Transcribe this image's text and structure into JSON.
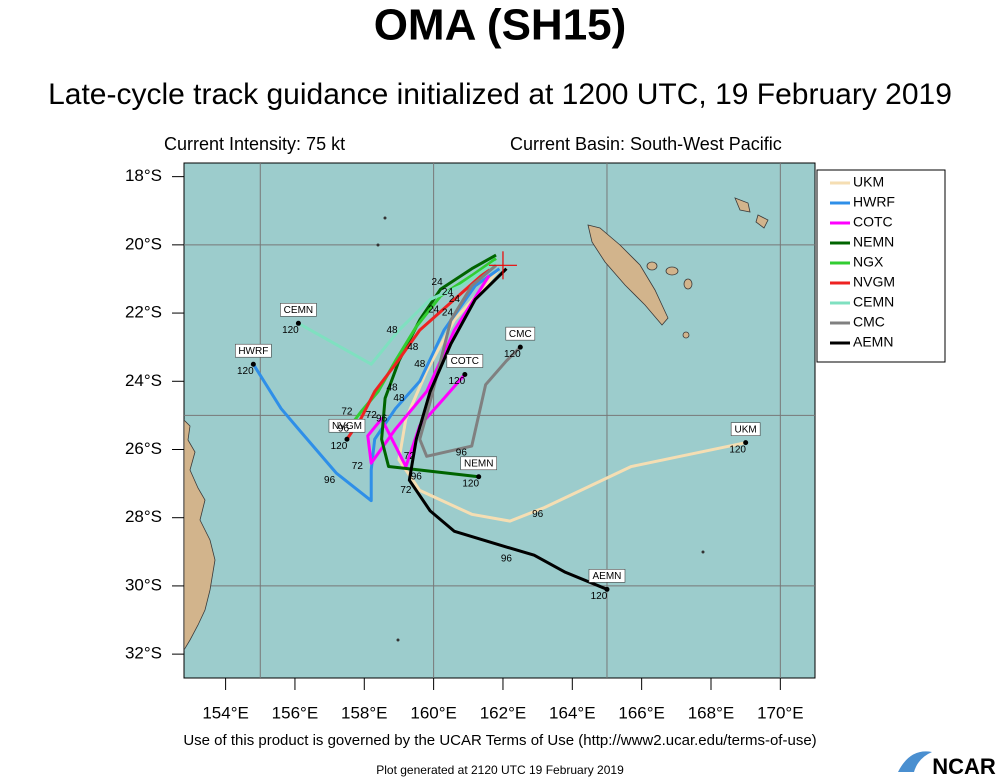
{
  "title": "OMA (SH15)",
  "subtitle": "Late-cycle track guidance initialized at 1200 UTC, 19 February 2019",
  "intensity": "Current Intensity: 75 kt",
  "basin": "Current Basin: South-West Pacific",
  "map": {
    "xlim": [
      152.8,
      171.0
    ],
    "ylim": [
      -32.7,
      -17.6
    ],
    "xticks": [
      {
        "value": 154,
        "label": "154°E"
      },
      {
        "value": 156,
        "label": "156°E"
      },
      {
        "value": 158,
        "label": "158°E"
      },
      {
        "value": 160,
        "label": "160°E"
      },
      {
        "value": 162,
        "label": "162°E"
      },
      {
        "value": 164,
        "label": "164°E"
      },
      {
        "value": 166,
        "label": "166°E"
      },
      {
        "value": 168,
        "label": "168°E"
      },
      {
        "value": 170,
        "label": "170°E"
      }
    ],
    "yticks": [
      {
        "value": -18,
        "label": "18°S"
      },
      {
        "value": -20,
        "label": "20°S"
      },
      {
        "value": -22,
        "label": "22°S"
      },
      {
        "value": -24,
        "label": "24°S"
      },
      {
        "value": -26,
        "label": "26°S"
      },
      {
        "value": -28,
        "label": "28°S"
      },
      {
        "value": -30,
        "label": "30°S"
      },
      {
        "value": -32,
        "label": "32°S"
      }
    ],
    "grid_lon": [
      155,
      160,
      165,
      170
    ],
    "grid_lat": [
      -20,
      -25,
      -30
    ],
    "current_position": {
      "lon": 162.0,
      "lat": -20.6
    }
  },
  "tracks": [
    {
      "name": "UKM",
      "color": "#f5deb3",
      "end_label": "120",
      "lon": [
        161.9,
        161.4,
        160.6,
        159.8,
        159.2,
        159.0,
        159.6,
        161.1,
        162.2,
        163.2,
        165.7,
        169.0
      ],
      "lat": [
        -20.7,
        -21.3,
        -22.2,
        -23.7,
        -25.1,
        -26.3,
        -27.2,
        -27.9,
        -28.1,
        -27.7,
        -26.5,
        -25.8
      ]
    },
    {
      "name": "HWRF",
      "color": "#2f8fe8",
      "end_label": "120",
      "lon": [
        161.9,
        161.2,
        160.3,
        159.6,
        158.9,
        158.3,
        158.2,
        158.2,
        157.2,
        156.1,
        155.6,
        154.8
      ],
      "lat": [
        -20.7,
        -21.2,
        -22.5,
        -24.0,
        -24.8,
        -25.7,
        -26.6,
        -27.5,
        -26.7,
        -25.4,
        -24.8,
        -23.5
      ]
    },
    {
      "name": "COTC",
      "color": "#ff00ff",
      "end_label": "120",
      "lon": [
        161.6,
        160.6,
        159.8,
        158.9,
        158.2,
        158.1,
        158.5,
        159.2,
        159.6,
        160.3,
        160.9
      ],
      "lat": [
        -20.9,
        -22.5,
        -24.3,
        -25.4,
        -26.4,
        -25.6,
        -25.1,
        -26.5,
        -25.3,
        -24.5,
        -23.8
      ]
    },
    {
      "name": "NEMN",
      "color": "#006400",
      "end_label": "120",
      "lon": [
        161.8,
        161.1,
        160.2,
        159.6,
        159.0,
        158.6,
        158.5,
        158.7,
        159.6,
        161.3
      ],
      "lat": [
        -20.3,
        -20.7,
        -21.3,
        -22.2,
        -23.4,
        -24.5,
        -25.7,
        -26.5,
        -26.6,
        -26.8
      ]
    },
    {
      "name": "NGX",
      "color": "#32cd32",
      "lon": [
        161.8,
        161.1,
        160.2,
        159.5,
        158.9,
        158.4,
        157.9,
        157.6
      ],
      "lat": [
        -20.4,
        -20.9,
        -21.5,
        -22.4,
        -23.4,
        -24.3,
        -24.9,
        -25.3
      ]
    },
    {
      "name": "NVGM",
      "color": "#ee2222",
      "end_label": "120",
      "lon": [
        161.6,
        160.6,
        159.6,
        158.9,
        158.3,
        157.9,
        157.5
      ],
      "lat": [
        -20.7,
        -21.6,
        -22.5,
        -23.5,
        -24.3,
        -25.1,
        -25.7
      ]
    },
    {
      "name": "CEMN",
      "color": "#7fe0c0",
      "end_label": "120",
      "lon": [
        161.8,
        160.8,
        159.9,
        159.0,
        158.2,
        156.1
      ],
      "lat": [
        -20.5,
        -21.2,
        -21.6,
        -22.5,
        -23.5,
        -22.3
      ]
    },
    {
      "name": "CMC",
      "color": "#808080",
      "end_label": "120",
      "lon": [
        161.8,
        161.1,
        160.5,
        160.2,
        159.9,
        159.6,
        159.8,
        161.1,
        161.5,
        162.1,
        162.5
      ],
      "lat": [
        -20.6,
        -21.2,
        -22.2,
        -23.4,
        -24.6,
        -25.7,
        -26.2,
        -25.9,
        -24.1,
        -23.4,
        -23.0
      ]
    },
    {
      "name": "AEMN",
      "color": "#000000",
      "end_label": "120",
      "lon": [
        162.1,
        161.2,
        160.5,
        159.9,
        159.5,
        159.3,
        159.9,
        160.6,
        161.9,
        162.9,
        163.8,
        165.0
      ],
      "lat": [
        -20.7,
        -21.6,
        -22.9,
        -24.3,
        -25.7,
        -26.9,
        -27.8,
        -28.4,
        -28.8,
        -29.1,
        -29.6,
        -30.1
      ]
    }
  ],
  "hour_labels": [
    {
      "label": "96",
      "lon": 163.0,
      "lat": -27.9
    },
    {
      "label": "96",
      "lon": 157.0,
      "lat": -26.9
    },
    {
      "label": "96",
      "lon": 162.1,
      "lat": -29.2
    },
    {
      "label": "96",
      "lon": 160.8,
      "lat": -26.1
    },
    {
      "label": "72",
      "lon": 159.3,
      "lat": -26.2
    },
    {
      "label": "72",
      "lon": 157.8,
      "lat": -26.5
    },
    {
      "label": "96",
      "lon": 159.5,
      "lat": -26.8
    },
    {
      "label": "72",
      "lon": 159.2,
      "lat": -27.2
    },
    {
      "label": "96",
      "lon": 157.4,
      "lat": -25.4
    },
    {
      "label": "72",
      "lon": 157.5,
      "lat": -24.9
    },
    {
      "label": "72",
      "lon": 158.2,
      "lat": -25.0
    },
    {
      "label": "96",
      "lon": 158.5,
      "lat": -25.1
    },
    {
      "label": "48",
      "lon": 158.8,
      "lat": -24.2
    },
    {
      "label": "48",
      "lon": 159.0,
      "lat": -24.5
    },
    {
      "label": "48",
      "lon": 159.6,
      "lat": -23.5
    },
    {
      "label": "48",
      "lon": 158.8,
      "lat": -22.5
    },
    {
      "label": "48",
      "lon": 159.4,
      "lat": -23.0
    },
    {
      "label": "24",
      "lon": 160.1,
      "lat": -21.1
    },
    {
      "label": "24",
      "lon": 160.4,
      "lat": -21.4
    },
    {
      "label": "24",
      "lon": 160.0,
      "lat": -21.9
    },
    {
      "label": "24",
      "lon": 160.6,
      "lat": -21.6
    },
    {
      "label": "24",
      "lon": 160.4,
      "lat": -22.0
    }
  ],
  "footer": {
    "terms": "Use of this product is governed by the UCAR Terms of Use (http://www2.ucar.edu/terms-of-use)",
    "generated": "Plot generated at 2120 UTC   19 February 2019",
    "logo": "NCAR"
  }
}
